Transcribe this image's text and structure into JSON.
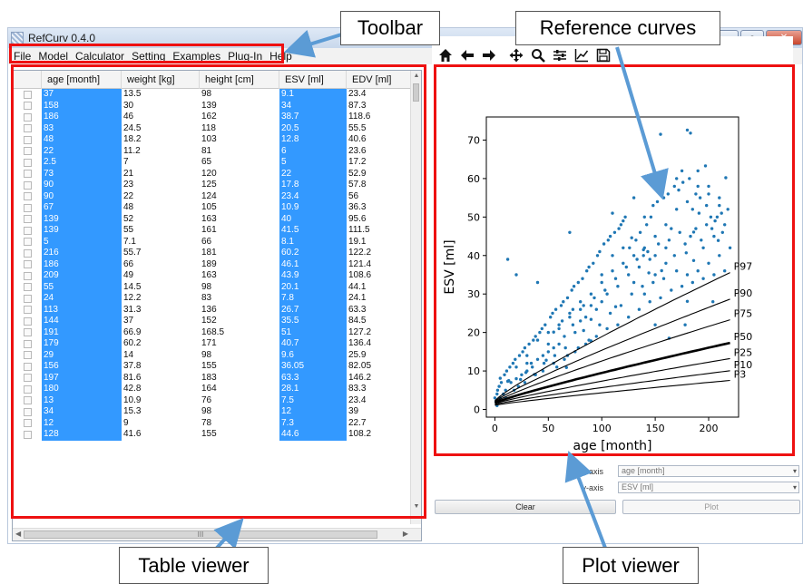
{
  "window": {
    "title": "RefCurv 0.4.0",
    "controls": {
      "minimize": "–",
      "maximize": "▫",
      "close": "✕"
    }
  },
  "menu": [
    "File",
    "Model",
    "Calculator",
    "Setting",
    "Examples",
    "Plug-In",
    "Help"
  ],
  "table": {
    "columns": [
      "age [month]",
      "weight [kg]",
      "height [cm]",
      "ESV [ml]",
      "EDV [ml]"
    ],
    "rows": [
      [
        "37",
        "13.5",
        "98",
        "9.1",
        "23.4"
      ],
      [
        "158",
        "30",
        "139",
        "34",
        "87.3"
      ],
      [
        "186",
        "46",
        "162",
        "38.7",
        "118.6"
      ],
      [
        "83",
        "24.5",
        "118",
        "20.5",
        "55.5"
      ],
      [
        "48",
        "18.2",
        "103",
        "12.8",
        "40.6"
      ],
      [
        "22",
        "11.2",
        "81",
        "6",
        "23.6"
      ],
      [
        "2.5",
        "7",
        "65",
        "5",
        "17.2"
      ],
      [
        "73",
        "21",
        "120",
        "22",
        "52.9"
      ],
      [
        "90",
        "23",
        "125",
        "17.8",
        "57.8"
      ],
      [
        "90",
        "22",
        "124",
        "23.4",
        "56"
      ],
      [
        "67",
        "48",
        "105",
        "10.9",
        "36.3"
      ],
      [
        "139",
        "52",
        "163",
        "40",
        "95.6"
      ],
      [
        "139",
        "55",
        "161",
        "41.5",
        "111.5"
      ],
      [
        "5",
        "7.1",
        "66",
        "8.1",
        "19.1"
      ],
      [
        "216",
        "55.7",
        "181",
        "60.2",
        "122.2"
      ],
      [
        "186",
        "66",
        "189",
        "46.1",
        "121.4"
      ],
      [
        "209",
        "49",
        "163",
        "43.9",
        "108.6"
      ],
      [
        "55",
        "14.5",
        "98",
        "20.1",
        "44.1"
      ],
      [
        "24",
        "12.2",
        "83",
        "7.8",
        "24.1"
      ],
      [
        "113",
        "31.3",
        "136",
        "26.7",
        "63.3"
      ],
      [
        "144",
        "37",
        "152",
        "35.5",
        "84.5"
      ],
      [
        "191",
        "66.9",
        "168.5",
        "51",
        "127.2"
      ],
      [
        "179",
        "60.2",
        "171",
        "40.7",
        "136.4"
      ],
      [
        "29",
        "14",
        "98",
        "9.6",
        "25.9"
      ],
      [
        "156",
        "37.8",
        "155",
        "36.05",
        "82.05"
      ],
      [
        "197",
        "81.6",
        "183",
        "63.3",
        "146.2"
      ],
      [
        "180",
        "42.8",
        "164",
        "28.1",
        "83.3"
      ],
      [
        "13",
        "10.9",
        "76",
        "7.5",
        "23.4"
      ],
      [
        "34",
        "15.3",
        "98",
        "12",
        "39"
      ],
      [
        "12",
        "9",
        "78",
        "7.3",
        "22.7"
      ],
      [
        "128",
        "41.6",
        "155",
        "44.6",
        "108.2"
      ]
    ],
    "hscroll_grip": "III"
  },
  "plot_toolbar": [
    "home-icon",
    "back-icon",
    "forward-icon",
    "pan-icon",
    "zoom-icon",
    "configure-icon",
    "axes-icon",
    "save-icon"
  ],
  "chart_data": {
    "type": "scatter",
    "xlabel": "age [month]",
    "ylabel": "ESV [ml]",
    "xlim": [
      -8,
      228
    ],
    "ylim": [
      -2,
      76
    ],
    "xticks": [
      0,
      50,
      100,
      150,
      200
    ],
    "yticks": [
      0,
      10,
      20,
      30,
      40,
      50,
      60,
      70
    ],
    "grid": false,
    "point_color": "#1f77b4",
    "curves": [
      {
        "name": "P97",
        "a": 2.3,
        "b": 0.0258,
        "c": 0.37,
        "d": 0.63
      },
      {
        "name": "P90",
        "a": 2.1,
        "b": 0.0206,
        "c": 0.33,
        "d": 0.67
      },
      {
        "name": "P75",
        "a": 1.9,
        "b": 0.0166,
        "c": 0.3,
        "d": 0.7
      },
      {
        "name": "P50",
        "a": 1.7,
        "b": 0.0121,
        "c": 0.25,
        "d": 0.75
      },
      {
        "name": "P25",
        "a": 1.5,
        "b": 0.0091,
        "c": 0.22,
        "d": 0.78
      },
      {
        "name": "P10",
        "a": 1.3,
        "b": 0.0068,
        "c": 0.18,
        "d": 0.82
      },
      {
        "name": "P3",
        "a": 1.1,
        "b": 0.005,
        "c": 0.15,
        "d": 0.85
      }
    ],
    "median_curve": "P50",
    "points": [
      [
        37,
        9.1
      ],
      [
        158,
        34
      ],
      [
        186,
        38.7
      ],
      [
        83,
        20.5
      ],
      [
        48,
        12.8
      ],
      [
        22,
        6
      ],
      [
        2.5,
        5
      ],
      [
        73,
        22
      ],
      [
        90,
        17.8
      ],
      [
        90,
        23.4
      ],
      [
        67,
        10.9
      ],
      [
        139,
        40
      ],
      [
        139,
        41.5
      ],
      [
        5,
        8.1
      ],
      [
        216,
        60.2
      ],
      [
        186,
        46.1
      ],
      [
        209,
        43.9
      ],
      [
        55,
        20.1
      ],
      [
        24,
        7.8
      ],
      [
        113,
        26.7
      ],
      [
        144,
        35.5
      ],
      [
        191,
        51
      ],
      [
        179,
        40.7
      ],
      [
        29,
        9.6
      ],
      [
        156,
        36.05
      ],
      [
        197,
        63.3
      ],
      [
        180,
        28.1
      ],
      [
        13,
        7.5
      ],
      [
        34,
        12
      ],
      [
        12,
        7.3
      ],
      [
        128,
        44.6
      ],
      [
        155,
        71.5
      ],
      [
        180,
        72.6
      ],
      [
        183,
        71.8
      ],
      [
        70,
        46
      ],
      [
        12,
        39
      ],
      [
        20,
        35
      ],
      [
        40,
        33
      ],
      [
        204,
        28
      ],
      [
        178,
        22
      ],
      [
        163,
        18.5
      ],
      [
        150,
        22
      ],
      [
        120,
        49
      ],
      [
        130,
        55
      ],
      [
        110,
        51
      ],
      [
        140,
        50
      ],
      [
        170,
        60
      ],
      [
        175,
        62
      ],
      [
        190,
        62
      ],
      [
        200,
        58
      ],
      [
        210,
        55
      ],
      [
        215,
        48
      ],
      [
        205,
        45
      ],
      [
        195,
        42
      ],
      [
        185,
        52
      ],
      [
        165,
        47
      ],
      [
        160,
        42
      ],
      [
        150,
        45
      ],
      [
        145,
        39
      ],
      [
        135,
        37
      ],
      [
        125,
        35
      ],
      [
        115,
        32
      ],
      [
        105,
        30
      ],
      [
        100,
        28
      ],
      [
        95,
        26
      ],
      [
        85,
        24
      ],
      [
        80,
        23
      ],
      [
        75,
        20
      ],
      [
        65,
        19
      ],
      [
        60,
        17
      ],
      [
        55,
        16
      ],
      [
        50,
        15
      ],
      [
        45,
        14
      ],
      [
        40,
        13
      ],
      [
        35,
        11
      ],
      [
        30,
        10
      ],
      [
        25,
        9
      ],
      [
        20,
        8
      ],
      [
        15,
        7
      ],
      [
        10,
        5
      ],
      [
        8,
        4
      ],
      [
        5,
        3
      ],
      [
        3,
        2
      ],
      [
        2,
        1
      ],
      [
        1,
        2
      ],
      [
        0,
        3
      ],
      [
        2,
        4
      ],
      [
        4,
        6
      ],
      [
        6,
        7
      ],
      [
        9,
        9
      ],
      [
        11,
        10
      ],
      [
        14,
        11
      ],
      [
        17,
        12
      ],
      [
        19,
        13
      ],
      [
        23,
        14
      ],
      [
        26,
        15
      ],
      [
        28,
        16
      ],
      [
        32,
        17
      ],
      [
        36,
        18
      ],
      [
        38,
        19
      ],
      [
        42,
        20
      ],
      [
        44,
        21
      ],
      [
        47,
        22
      ],
      [
        52,
        24
      ],
      [
        54,
        25
      ],
      [
        57,
        26
      ],
      [
        62,
        27
      ],
      [
        64,
        28
      ],
      [
        68,
        29
      ],
      [
        72,
        31
      ],
      [
        74,
        32
      ],
      [
        78,
        33
      ],
      [
        82,
        34
      ],
      [
        86,
        36
      ],
      [
        88,
        37
      ],
      [
        92,
        38
      ],
      [
        96,
        40
      ],
      [
        98,
        41
      ],
      [
        102,
        43
      ],
      [
        106,
        44
      ],
      [
        108,
        45
      ],
      [
        112,
        46
      ],
      [
        116,
        47
      ],
      [
        118,
        48
      ],
      [
        122,
        50
      ],
      [
        126,
        42
      ],
      [
        132,
        44
      ],
      [
        136,
        46
      ],
      [
        142,
        48
      ],
      [
        146,
        50
      ],
      [
        148,
        53
      ],
      [
        152,
        54
      ],
      [
        158,
        55
      ],
      [
        162,
        56
      ],
      [
        168,
        58
      ],
      [
        172,
        57
      ],
      [
        176,
        59
      ],
      [
        182,
        60
      ],
      [
        188,
        56
      ],
      [
        192,
        55
      ],
      [
        198,
        53
      ],
      [
        202,
        50
      ],
      [
        206,
        49
      ],
      [
        212,
        51
      ],
      [
        218,
        52
      ],
      [
        30,
        14
      ],
      [
        40,
        18
      ],
      [
        50,
        20
      ],
      [
        60,
        22
      ],
      [
        70,
        25
      ],
      [
        80,
        28
      ],
      [
        90,
        30
      ],
      [
        100,
        33
      ],
      [
        110,
        36
      ],
      [
        120,
        38
      ],
      [
        130,
        40
      ],
      [
        140,
        42
      ],
      [
        150,
        40
      ],
      [
        160,
        38
      ],
      [
        170,
        36
      ],
      [
        180,
        35
      ],
      [
        190,
        36
      ],
      [
        200,
        38
      ],
      [
        210,
        40
      ],
      [
        220,
        42
      ],
      [
        45,
        10
      ],
      [
        55,
        12
      ],
      [
        65,
        13
      ],
      [
        75,
        15
      ],
      [
        85,
        17
      ],
      [
        95,
        19
      ],
      [
        105,
        21
      ],
      [
        115,
        22
      ],
      [
        125,
        24
      ],
      [
        135,
        26
      ],
      [
        145,
        28
      ],
      [
        155,
        29
      ],
      [
        165,
        31
      ],
      [
        175,
        32
      ],
      [
        185,
        33
      ],
      [
        195,
        34
      ],
      [
        205,
        35
      ],
      [
        215,
        36
      ],
      [
        18,
        5
      ],
      [
        28,
        7
      ],
      [
        38,
        9
      ],
      [
        58,
        11
      ],
      [
        68,
        14
      ],
      [
        78,
        16
      ],
      [
        88,
        18
      ],
      [
        98,
        22
      ],
      [
        108,
        25
      ],
      [
        118,
        27
      ],
      [
        128,
        30
      ],
      [
        138,
        32
      ],
      [
        148,
        33
      ],
      [
        168,
        40
      ],
      [
        178,
        43
      ],
      [
        188,
        47
      ],
      [
        198,
        48
      ],
      [
        208,
        50
      ],
      [
        63,
        23
      ],
      [
        73,
        26
      ],
      [
        83,
        27
      ],
      [
        93,
        29
      ],
      [
        103,
        31
      ],
      [
        113,
        34
      ],
      [
        123,
        37
      ],
      [
        133,
        39
      ],
      [
        143,
        41
      ],
      [
        153,
        43
      ],
      [
        163,
        44
      ],
      [
        173,
        46
      ],
      [
        183,
        45
      ],
      [
        193,
        44
      ],
      [
        203,
        47
      ],
      [
        213,
        46
      ],
      [
        10,
        3
      ],
      [
        20,
        11
      ],
      [
        30,
        12
      ],
      [
        50,
        17
      ],
      [
        60,
        21
      ],
      [
        70,
        24
      ],
      [
        80,
        26
      ],
      [
        90,
        27
      ],
      [
        100,
        35
      ],
      [
        110,
        40
      ],
      [
        120,
        42
      ],
      [
        130,
        33
      ],
      [
        140,
        30
      ],
      [
        150,
        35
      ],
      [
        160,
        48
      ],
      [
        170,
        52
      ],
      [
        180,
        54
      ],
      [
        190,
        58
      ],
      [
        200,
        56
      ],
      [
        210,
        53
      ],
      [
        46,
        12
      ],
      [
        56,
        14
      ],
      [
        66,
        16
      ]
    ]
  },
  "axis_selector": {
    "x_label": "x-axis",
    "y_label": "y-axis",
    "x_value": "age [month]",
    "y_value": "ESV [ml]"
  },
  "buttons": {
    "clear": "Clear",
    "plot": "Plot"
  },
  "annotations": {
    "toolbar": "Toolbar",
    "reference_curves": "Reference curves",
    "table_viewer": "Table viewer",
    "plot_viewer": "Plot viewer",
    "box_color": "#ee1111",
    "arrow_color": "#5b9bd5"
  }
}
